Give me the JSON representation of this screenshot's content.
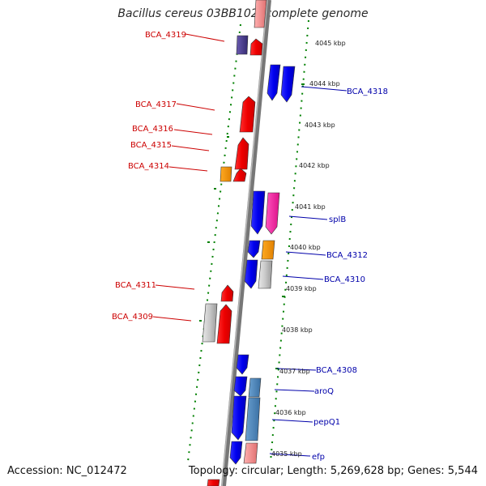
{
  "title": "Bacillus cereus 03BB102, complete genome",
  "accession": "Accession: NC_012472",
  "topology": "Topology: circular; Length: 5,269,628 bp; Genes: 5,544",
  "colors": {
    "forward_gene": "#ff0000",
    "reverse_gene": "#0000ff",
    "pseudo_gene": "#bbbbbb",
    "rna_gene": "#ff9900",
    "regulatory": "#ff33aa",
    "operon_blue": "#4682b4",
    "pink_gene": "#f08080",
    "purple_gene": "#483d8b",
    "label_forward": "#cc0000",
    "label_reverse": "#0000aa",
    "tick_green": "#008000",
    "backbone": "#808080"
  },
  "scale_ticks": [
    "4045 kbp",
    "4044 kbp",
    "4043 kbp",
    "4042 kbp",
    "4041 kbp",
    "4040 kbp",
    "4039 kbp",
    "4038 kbp",
    "4037 kbp",
    "4036 kbp",
    "4035 kbp"
  ],
  "left_labels": [
    "BCA_4319",
    "BCA_4317",
    "BCA_4316",
    "BCA_4315",
    "BCA_4314",
    "BCA_4311",
    "BCA_4309"
  ],
  "right_labels": [
    "BCA_4318",
    "splB",
    "BCA_4312",
    "BCA_4310",
    "BCA_4308",
    "aroQ",
    "pepQ1",
    "efp"
  ]
}
